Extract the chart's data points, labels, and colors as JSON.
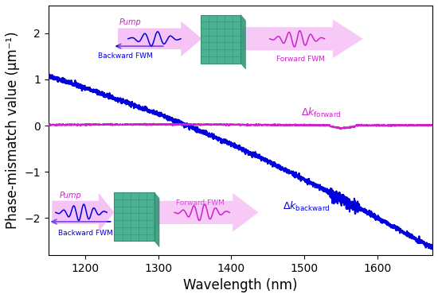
{
  "x_start": 1150,
  "x_end": 1675,
  "y_lim": [
    -2.8,
    2.6
  ],
  "x_lim": [
    1150,
    1675
  ],
  "xlabel": "Wavelength (nm)",
  "ylabel": "Phase-mismatch value (μm⁻¹)",
  "blue_color": "#0000dd",
  "magenta_color": "#cc22cc",
  "pink_color": "#ee88ee",
  "teal_color": "#3aaa88",
  "teal_dark": "#2a8868",
  "axis_fontsize": 12,
  "tick_fontsize": 10,
  "background_color": "#ffffff",
  "xticks": [
    1200,
    1300,
    1400,
    1500,
    1600
  ],
  "yticks": [
    -2,
    -1,
    0,
    1,
    2
  ]
}
